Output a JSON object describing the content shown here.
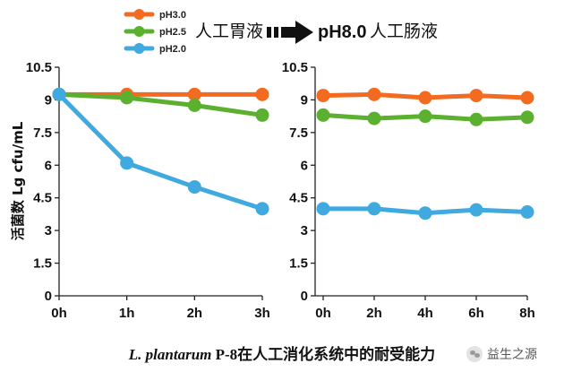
{
  "legend": [
    {
      "label": "pH3.0",
      "color": "#F26B21"
    },
    {
      "label": "pH2.5",
      "color": "#5BB030"
    },
    {
      "label": "pH2.0",
      "color": "#3FA9E0"
    }
  ],
  "phase": {
    "from": "人工胃液",
    "to_ph": "pH8.0",
    "to_name": "人工肠液"
  },
  "caption": {
    "species": "L. plantarum",
    "rest": " P-8在人工消化系统中的耐受能力"
  },
  "watermark": {
    "text": "益生之源"
  },
  "chart_data": [
    {
      "type": "line",
      "title": "人工胃液",
      "xlabel": "",
      "ylabel": "活菌数 Lg cfu/mL",
      "categories": [
        "0h",
        "1h",
        "2h",
        "3h"
      ],
      "ylim": [
        0,
        10.5
      ],
      "yticks": [
        0,
        1.5,
        3,
        4.5,
        6,
        7.5,
        9,
        10.5
      ],
      "ytick_labels": [
        "0",
        "1.5",
        "3",
        "4.5",
        "6",
        "7.5",
        "9",
        "10.5"
      ],
      "grid": false,
      "series": [
        {
          "name": "pH3.0",
          "values": [
            9.25,
            9.25,
            9.25,
            9.25
          ]
        },
        {
          "name": "pH2.5",
          "values": [
            9.25,
            9.1,
            8.75,
            8.3
          ]
        },
        {
          "name": "pH2.0",
          "values": [
            9.25,
            6.1,
            5.0,
            4.0
          ]
        }
      ]
    },
    {
      "type": "line",
      "title": "pH8.0人工肠液",
      "xlabel": "",
      "ylabel": "",
      "categories": [
        "0h",
        "2h",
        "4h",
        "6h",
        "8h"
      ],
      "ylim": [
        0,
        10.5
      ],
      "yticks": [
        0,
        1.5,
        3,
        4.5,
        6,
        7.5,
        9,
        10.5
      ],
      "ytick_labels": [
        "0",
        "1.5",
        "3",
        "4.5",
        "6",
        "7.5",
        "9",
        "10.5"
      ],
      "grid": false,
      "series": [
        {
          "name": "pH3.0",
          "values": [
            9.2,
            9.25,
            9.1,
            9.2,
            9.1
          ]
        },
        {
          "name": "pH2.5",
          "values": [
            8.3,
            8.15,
            8.25,
            8.1,
            8.2
          ]
        },
        {
          "name": "pH2.0",
          "values": [
            4.0,
            4.0,
            3.8,
            3.95,
            3.85
          ]
        }
      ]
    }
  ]
}
